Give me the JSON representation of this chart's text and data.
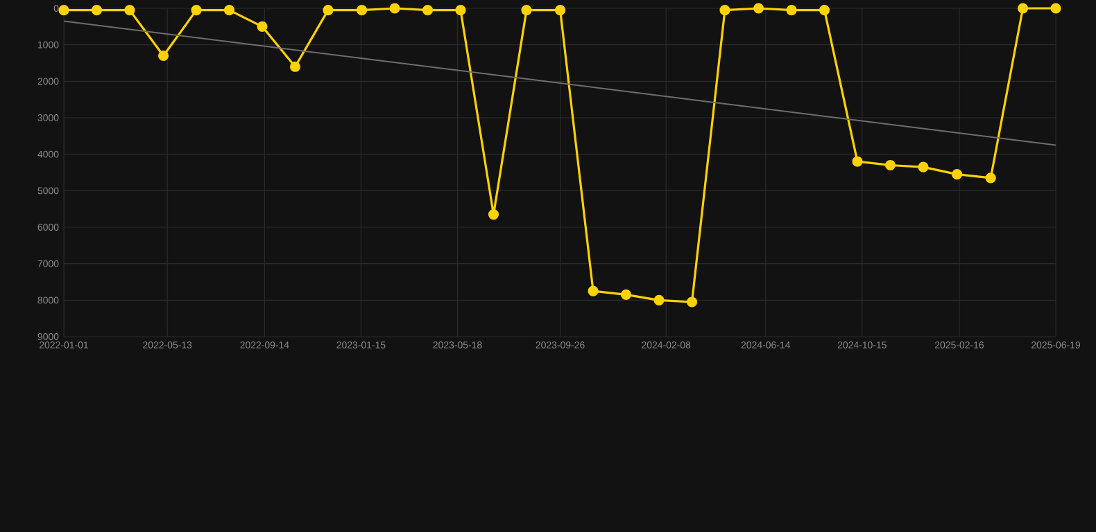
{
  "chart_data": {
    "type": "line",
    "x": [
      "2022-01-01",
      "2022-02-12",
      "2022-03-26",
      "2022-05-08",
      "2022-06-19",
      "2022-07-31",
      "2022-09-11",
      "2022-10-23",
      "2022-12-04",
      "2023-01-16",
      "2023-02-27",
      "2023-04-10",
      "2023-05-22",
      "2023-07-03",
      "2023-08-14",
      "2023-09-26",
      "2023-11-07",
      "2023-12-19",
      "2024-01-30",
      "2024-03-12",
      "2024-04-23",
      "2024-06-05",
      "2024-07-17",
      "2024-08-28",
      "2024-10-09",
      "2024-11-20",
      "2025-01-01",
      "2025-02-13",
      "2025-03-28",
      "2025-05-08",
      "2025-06-19"
    ],
    "series": [
      {
        "color": "#ffd200",
        "marker": "circle",
        "values": [
          50,
          50,
          50,
          1300,
          50,
          50,
          500,
          1600,
          50,
          50,
          0,
          50,
          50,
          5650,
          50,
          50,
          7750,
          7850,
          8000,
          8050,
          50,
          0,
          50,
          50,
          4200,
          4300,
          4350,
          4550,
          4650,
          0,
          0
        ]
      },
      {
        "type": "line",
        "color": "#6e6e6e",
        "marker": "none",
        "x": [
          "2022-01-01",
          "2025-06-19"
        ],
        "values": [
          350,
          3750
        ]
      }
    ],
    "xlim": [
      "2022-01-01",
      "2025-06-19"
    ],
    "xticks": [
      "2022-01-01",
      "2022-05-13",
      "2022-09-14",
      "2023-01-15",
      "2023-05-18",
      "2023-09-26",
      "2024-02-08",
      "2024-06-14",
      "2024-10-15",
      "2025-02-16",
      "2025-06-19"
    ],
    "ylim": [
      9000,
      0
    ],
    "yticks": [
      0,
      1000,
      2000,
      3000,
      4000,
      5000,
      6000,
      7000,
      8000,
      9000
    ],
    "grid": true
  }
}
